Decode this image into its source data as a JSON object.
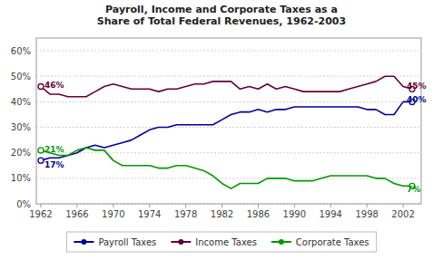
{
  "chart_data": {
    "type": "line",
    "title": "Payroll, Income and Corporate Taxes as a\nShare of Total Federal Revenues, 1962-2003",
    "x": [
      1962,
      1963,
      1964,
      1965,
      1966,
      1967,
      1968,
      1969,
      1970,
      1971,
      1972,
      1973,
      1974,
      1975,
      1976,
      1977,
      1978,
      1979,
      1980,
      1981,
      1982,
      1983,
      1984,
      1985,
      1986,
      1987,
      1988,
      1989,
      1990,
      1991,
      1992,
      1993,
      1994,
      1995,
      1996,
      1997,
      1998,
      1999,
      2000,
      2001,
      2002,
      2003
    ],
    "series": [
      {
        "name": "Payroll Taxes",
        "color": "#000099",
        "values": [
          17,
          18,
          18,
          19,
          20,
          22,
          23,
          22,
          23,
          24,
          25,
          27,
          29,
          30,
          30,
          31,
          31,
          31,
          31,
          31,
          33,
          35,
          36,
          36,
          37,
          36,
          37,
          37,
          38,
          38,
          38,
          38,
          38,
          38,
          38,
          38,
          37,
          37,
          35,
          35,
          40,
          40
        ]
      },
      {
        "name": "Income Taxes",
        "color": "#660033",
        "values": [
          46,
          43,
          43,
          42,
          42,
          42,
          44,
          46,
          47,
          46,
          45,
          45,
          45,
          44,
          45,
          45,
          46,
          47,
          47,
          48,
          48,
          48,
          45,
          46,
          45,
          47,
          45,
          46,
          45,
          44,
          44,
          44,
          44,
          44,
          45,
          46,
          47,
          48,
          50,
          50,
          46,
          45
        ]
      },
      {
        "name": "Corporate Taxes",
        "color": "#009900",
        "values": [
          21,
          20,
          19,
          19,
          21,
          22,
          21,
          21,
          17,
          15,
          15,
          15,
          15,
          14,
          14,
          15,
          15,
          14,
          13,
          11,
          8,
          6,
          8,
          8,
          8,
          10,
          10,
          10,
          9,
          9,
          9,
          10,
          11,
          11,
          11,
          11,
          11,
          10,
          10,
          8,
          7,
          7
        ]
      }
    ],
    "xlim": [
      1961.5,
      2004.0
    ],
    "xticks": [
      1962,
      1966,
      1970,
      1974,
      1978,
      1982,
      1986,
      1990,
      1994,
      1998,
      2002
    ],
    "ylim": [
      0,
      65
    ],
    "yticks": [
      {
        "value": 0,
        "label": "0%"
      },
      {
        "value": 10,
        "label": "10%"
      },
      {
        "value": 20,
        "label": "20%"
      },
      {
        "value": 30,
        "label": "30%"
      },
      {
        "value": 40,
        "label": "40%"
      },
      {
        "value": 50,
        "label": "50%"
      },
      {
        "value": 60,
        "label": "60%"
      }
    ],
    "annotations": [
      {
        "text": "46%",
        "x": 1962.4,
        "y": 46.5,
        "color": "#660033"
      },
      {
        "text": "21%",
        "x": 1962.4,
        "y": 21.2,
        "color": "#009900"
      },
      {
        "text": "17%",
        "x": 1962.4,
        "y": 15.2,
        "color": "#000099"
      },
      {
        "text": "45%",
        "x": 2002.4,
        "y": 46.0,
        "color": "#660033"
      },
      {
        "text": "40%",
        "x": 2002.4,
        "y": 40.5,
        "color": "#000099"
      },
      {
        "text": "7%",
        "x": 2002.4,
        "y": 5.5,
        "color": "#009900"
      }
    ],
    "grid": true,
    "legend": "bottom"
  }
}
